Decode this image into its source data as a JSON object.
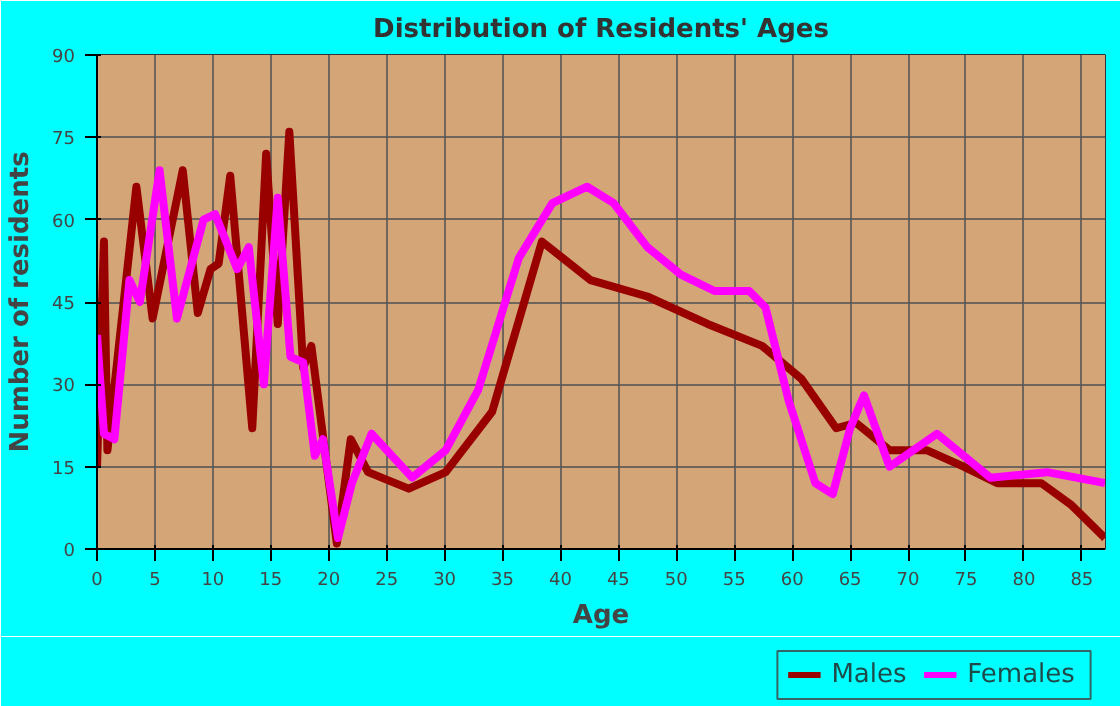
{
  "chart_data": {
    "type": "line",
    "title": "Distribution of Residents' Ages",
    "xlabel": "Age",
    "ylabel": "Number of residents",
    "xlim": [
      0,
      87
    ],
    "xticks": [
      0,
      5,
      10,
      15,
      20,
      25,
      30,
      35,
      40,
      45,
      50,
      55,
      60,
      65,
      70,
      75,
      80,
      85
    ],
    "ylim": [
      0,
      90
    ],
    "yticks": [
      0,
      15,
      30,
      45,
      60,
      75,
      90
    ],
    "grid": true,
    "legend": "bottom right",
    "line_style": "solid",
    "series": [
      {
        "name": "Males",
        "color": "#990000",
        "x": [
          0,
          0.6,
          0.9,
          3.4,
          4.8,
          7.4,
          8.7,
          9.8,
          10.5,
          11.5,
          13.4,
          14.6,
          15.6,
          16.6,
          17.8,
          18.5,
          20.7,
          21.9,
          23.4,
          26.9,
          30.1,
          34.1,
          38.4,
          42.6,
          47.5,
          52.7,
          57.4,
          60.8,
          63.8,
          65.5,
          68.4,
          71.6,
          74.8,
          77.7,
          81.5,
          84.1,
          87
        ],
        "values": [
          15,
          56,
          18,
          66,
          42,
          69,
          43,
          51,
          52,
          68,
          22,
          72,
          41,
          76,
          33,
          37,
          1,
          20,
          14,
          11,
          14,
          25,
          56,
          49,
          46,
          41,
          37,
          31,
          22,
          23,
          18,
          18,
          15,
          12,
          12,
          8,
          2
        ]
      },
      {
        "name": "Females",
        "color": "#ff00ff",
        "x": [
          0,
          0.6,
          1.5,
          2.8,
          3.7,
          5.4,
          6.9,
          8.3,
          9.2,
          10.2,
          12.1,
          13.1,
          14.4,
          15.6,
          16.7,
          17.8,
          18.8,
          19.5,
          20.8,
          22,
          23.7,
          27.2,
          30.1,
          32.9,
          36.4,
          39.3,
          42.3,
          44.6,
          47.5,
          50.4,
          53.3,
          56.3,
          57.7,
          59.7,
          62,
          63.5,
          65,
          66.2,
          68.4,
          72.5,
          77.1,
          82,
          87
        ],
        "values": [
          39,
          21,
          20,
          49,
          45,
          69,
          42,
          53,
          60,
          61,
          51,
          55,
          30,
          64,
          35,
          34,
          17,
          20,
          2,
          12,
          21,
          13,
          18,
          29,
          53,
          63,
          66,
          63,
          55,
          50,
          47,
          47,
          44,
          27,
          12,
          10,
          22,
          28,
          15,
          21,
          13,
          14,
          12
        ]
      }
    ]
  }
}
